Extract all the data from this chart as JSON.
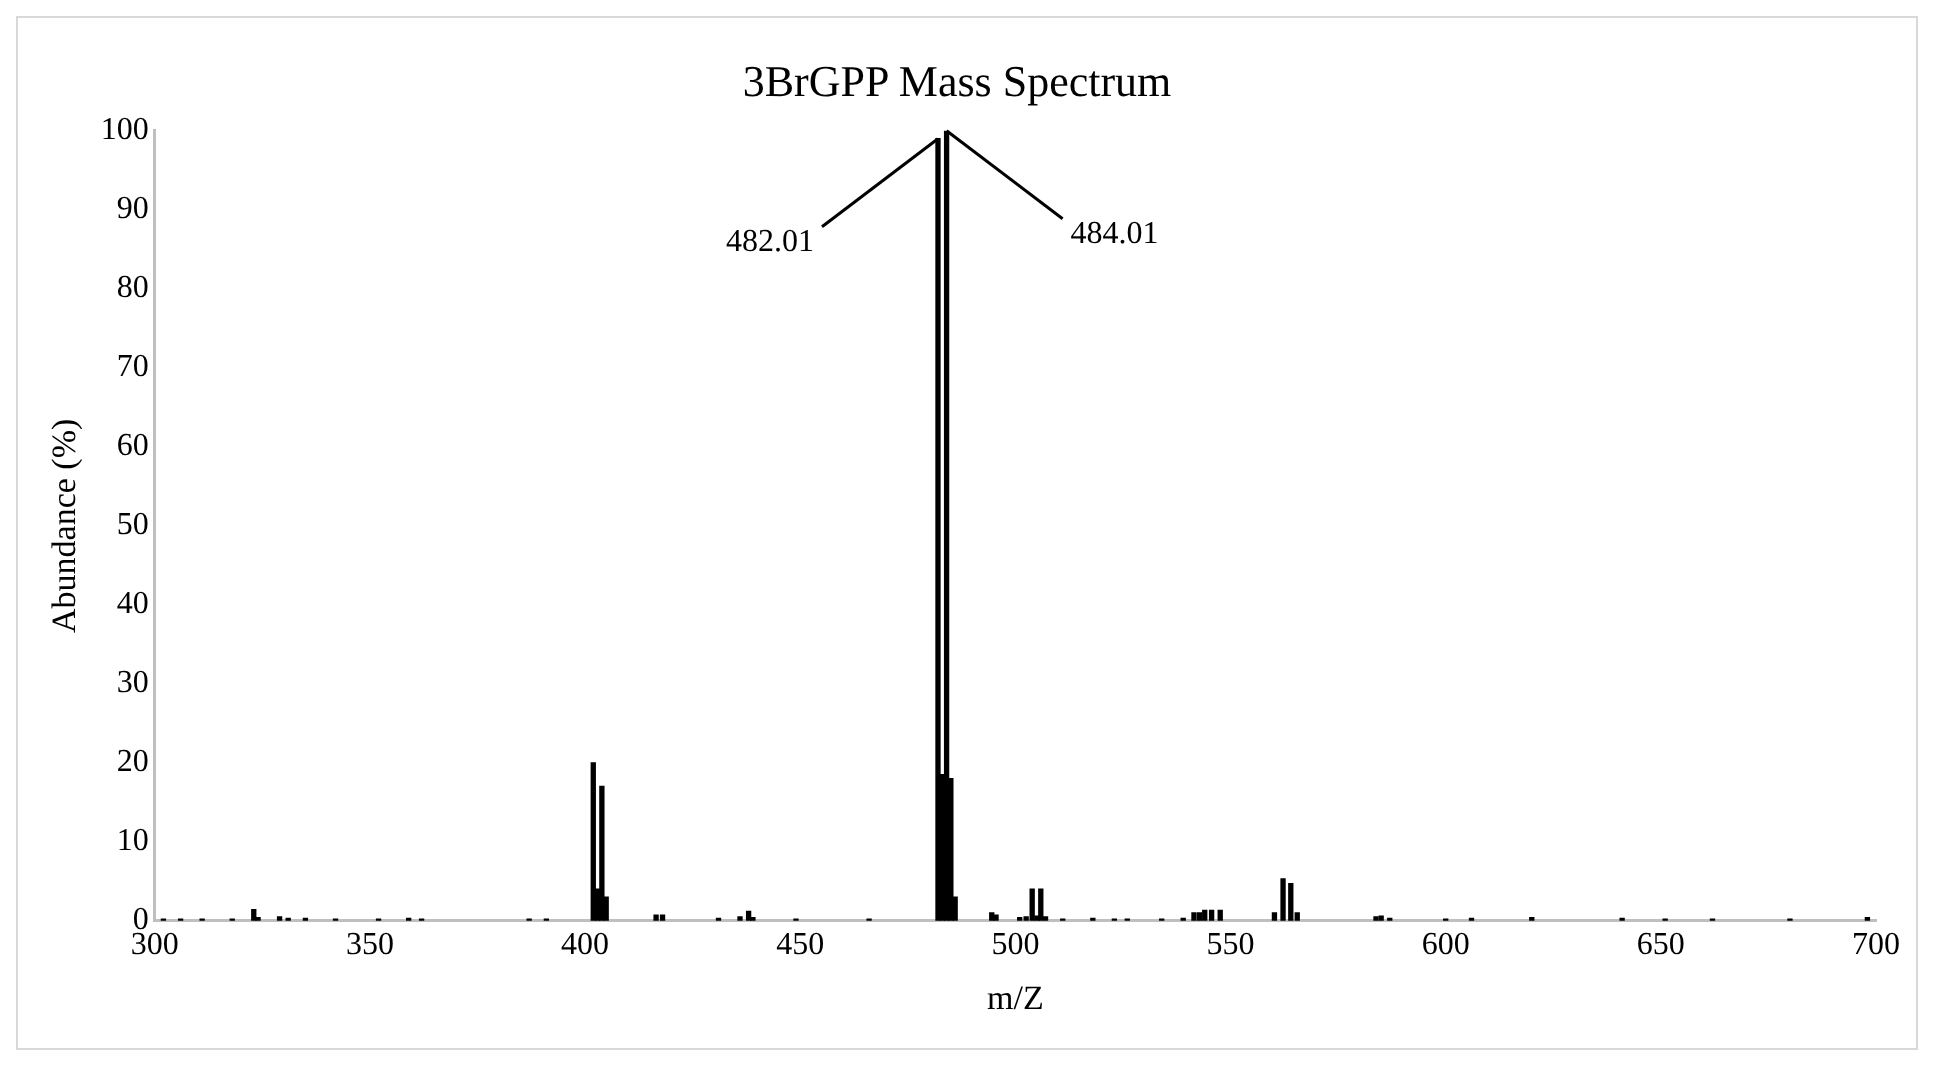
{
  "chart_data": {
    "type": "bar",
    "title": "3BrGPP Mass Spectrum",
    "xlabel": "m/Z",
    "ylabel": "Abundance (%)",
    "x": [
      302,
      306,
      311,
      318,
      323,
      324,
      329,
      331,
      335,
      342,
      352,
      359,
      362,
      387,
      391,
      401.9,
      402.9,
      403.9,
      404.9,
      416.5,
      418,
      431,
      436,
      438,
      439,
      449,
      466,
      482.01,
      483,
      484.01,
      485,
      486,
      494.5,
      495.5,
      501,
      502.5,
      503.9,
      505,
      505.9,
      507,
      511,
      518,
      523,
      526,
      534,
      539,
      541.5,
      542.8,
      544,
      545.6,
      547.6,
      560.2,
      562.2,
      564,
      565.5,
      583.8,
      585,
      587,
      600,
      606,
      620,
      641,
      651,
      662,
      680,
      698
    ],
    "values": [
      0.2,
      0.2,
      0.2,
      0.2,
      1.4,
      0.4,
      0.5,
      0.3,
      0.3,
      0.2,
      0.2,
      0.3,
      0.2,
      0.2,
      0.2,
      20,
      4,
      17,
      3,
      0.7,
      0.7,
      0.3,
      0.5,
      1.2,
      0.4,
      0.2,
      0.2,
      99,
      18.5,
      100,
      18,
      3,
      1,
      0.7,
      0.4,
      0.5,
      4,
      0.6,
      4,
      0.5,
      0.2,
      0.3,
      0.2,
      0.2,
      0.2,
      0.3,
      1,
      1,
      1.3,
      1.3,
      1.3,
      1,
      5.3,
      4.7,
      1,
      0.5,
      0.6,
      0.3,
      0.2,
      0.3,
      0.4,
      0.3,
      0.2,
      0.2,
      0.2,
      0.4
    ],
    "color": "#000000",
    "xlim": [
      300,
      700
    ],
    "xticks": [
      300,
      350,
      400,
      450,
      500,
      550,
      600,
      650,
      700
    ],
    "ylim": [
      0,
      100
    ],
    "yticks": [
      0,
      10,
      20,
      30,
      40,
      50,
      60,
      70,
      80,
      90,
      100
    ],
    "annotations": [
      {
        "text": "482.01",
        "x": 482.01,
        "y": 99
      },
      {
        "text": "484.01",
        "x": 484.01,
        "y": 100
      }
    ]
  }
}
